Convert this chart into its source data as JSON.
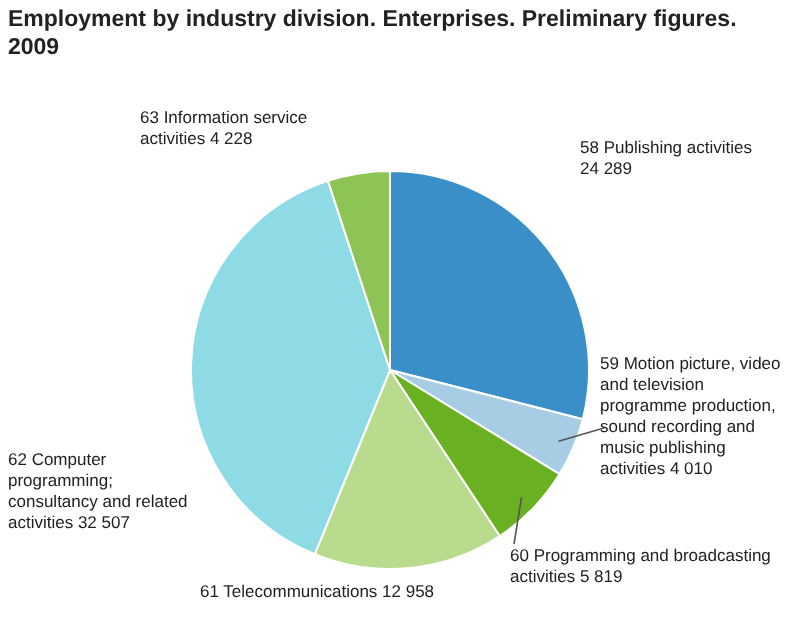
{
  "chart_data": {
    "type": "pie",
    "title": "Employment by industry division. Enterprises. Preliminary figures. 2009",
    "categories": [
      "58 Publishing activities",
      "59 Motion picture, video and television programme production, sound recording and music publishing activities",
      "60 Programming and broadcasting activities",
      "61 Telecommunications",
      "62 Computer programming; consultancy and related activities",
      "63 Information service activities"
    ],
    "values": [
      24289,
      4010,
      5819,
      12958,
      32507,
      4228
    ],
    "value_labels": [
      "24 289",
      "4 010",
      "5 819",
      "12 958",
      "32 507",
      "4 228"
    ],
    "colors": [
      "#3a8fc9",
      "#a6cde4",
      "#6ab023",
      "#b9db8e",
      "#8edbe6",
      "#8dc455"
    ],
    "legend": false
  }
}
